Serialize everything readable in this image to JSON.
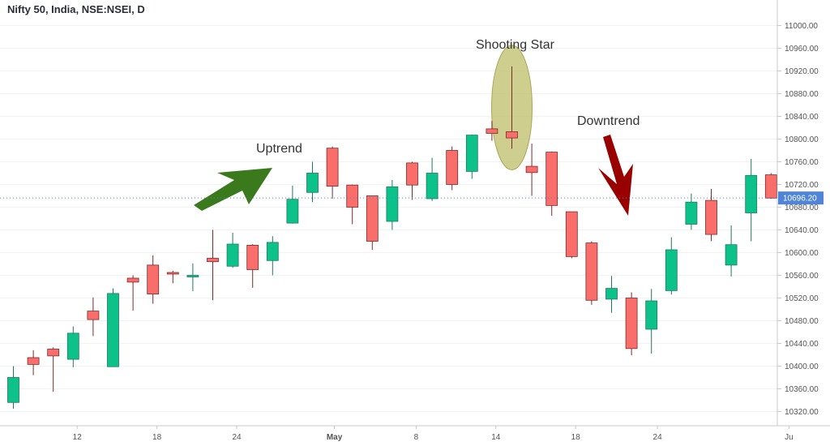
{
  "header": {
    "title": "Nifty 50, India, NSE:NSEI, D"
  },
  "colors": {
    "up": "#0cc18a",
    "down": "#f96e6b",
    "upWick": "#1f7a5a",
    "downWick": "#7a2b2b",
    "lastPrice": "#4f84d6",
    "uptrendArrow": "#3a7a1c",
    "downtrendArrow": "#990000",
    "highlight": "#c5c57a"
  },
  "chart_data": {
    "type": "candlestick",
    "ylim": [
      10290,
      11000
    ],
    "yticks": [
      "11000.00",
      "10960.00",
      "10920.00",
      "10880.00",
      "10840.00",
      "10800.00",
      "10760.00",
      "10720.00",
      "10680.00",
      "10640.00",
      "10600.00",
      "10560.00",
      "10520.00",
      "10480.00",
      "10440.00",
      "10400.00",
      "10360.00",
      "10320.00"
    ],
    "xticks": [
      "12",
      "18",
      "24",
      "May",
      "8",
      "14",
      "18",
      "24",
      "Ju"
    ],
    "last_price": "10696.20",
    "candles": [
      {
        "o": 10336,
        "h": 10400,
        "l": 10325,
        "c": 10380
      },
      {
        "o": 10415,
        "h": 10428,
        "l": 10384,
        "c": 10403
      },
      {
        "o": 10430,
        "h": 10433,
        "l": 10355,
        "c": 10418
      },
      {
        "o": 10412,
        "h": 10470,
        "l": 10398,
        "c": 10458
      },
      {
        "o": 10497,
        "h": 10521,
        "l": 10453,
        "c": 10482
      },
      {
        "o": 10399,
        "h": 10537,
        "l": 10399,
        "c": 10528
      },
      {
        "o": 10555,
        "h": 10560,
        "l": 10498,
        "c": 10548
      },
      {
        "o": 10578,
        "h": 10595,
        "l": 10510,
        "c": 10527
      },
      {
        "o": 10565,
        "h": 10568,
        "l": 10546,
        "c": 10563
      },
      {
        "o": 10560,
        "h": 10581,
        "l": 10532,
        "c": 10560
      },
      {
        "o": 10590,
        "h": 10640,
        "l": 10516,
        "c": 10584
      },
      {
        "o": 10576,
        "h": 10635,
        "l": 10573,
        "c": 10615
      },
      {
        "o": 10613,
        "h": 10615,
        "l": 10538,
        "c": 10570
      },
      {
        "o": 10586,
        "h": 10629,
        "l": 10560,
        "c": 10618
      },
      {
        "o": 10652,
        "h": 10718,
        "l": 10651,
        "c": 10694
      },
      {
        "o": 10706,
        "h": 10760,
        "l": 10689,
        "c": 10740
      },
      {
        "o": 10784,
        "h": 10787,
        "l": 10695,
        "c": 10717
      },
      {
        "o": 10719,
        "h": 10720,
        "l": 10650,
        "c": 10680
      },
      {
        "o": 10700,
        "h": 10700,
        "l": 10605,
        "c": 10620
      },
      {
        "o": 10655,
        "h": 10728,
        "l": 10640,
        "c": 10716
      },
      {
        "o": 10758,
        "h": 10760,
        "l": 10693,
        "c": 10719
      },
      {
        "o": 10695,
        "h": 10767,
        "l": 10691,
        "c": 10740
      },
      {
        "o": 10780,
        "h": 10787,
        "l": 10710,
        "c": 10720
      },
      {
        "o": 10743,
        "h": 10808,
        "l": 10730,
        "c": 10807
      },
      {
        "o": 10818,
        "h": 10832,
        "l": 10797,
        "c": 10810
      },
      {
        "o": 10813,
        "h": 10928,
        "l": 10783,
        "c": 10802
      },
      {
        "o": 10752,
        "h": 10792,
        "l": 10700,
        "c": 10741
      },
      {
        "o": 10777,
        "h": 10778,
        "l": 10665,
        "c": 10683
      },
      {
        "o": 10672,
        "h": 10672,
        "l": 10590,
        "c": 10593
      },
      {
        "o": 10617,
        "h": 10620,
        "l": 10508,
        "c": 10516
      },
      {
        "o": 10518,
        "h": 10559,
        "l": 10494,
        "c": 10537
      },
      {
        "o": 10520,
        "h": 10530,
        "l": 10419,
        "c": 10431
      },
      {
        "o": 10465,
        "h": 10536,
        "l": 10422,
        "c": 10515
      },
      {
        "o": 10533,
        "h": 10627,
        "l": 10526,
        "c": 10605
      },
      {
        "o": 10650,
        "h": 10704,
        "l": 10640,
        "c": 10689
      },
      {
        "o": 10692,
        "h": 10712,
        "l": 10620,
        "c": 10632
      },
      {
        "o": 10578,
        "h": 10648,
        "l": 10558,
        "c": 10614
      },
      {
        "o": 10670,
        "h": 10765,
        "l": 10620,
        "c": 10736
      },
      {
        "o": 10737,
        "h": 10740,
        "l": 10695,
        "c": 10696
      }
    ],
    "annotations": [
      {
        "label": "Uptrend"
      },
      {
        "label": "Shooting Star"
      },
      {
        "label": "Downtrend"
      }
    ]
  }
}
